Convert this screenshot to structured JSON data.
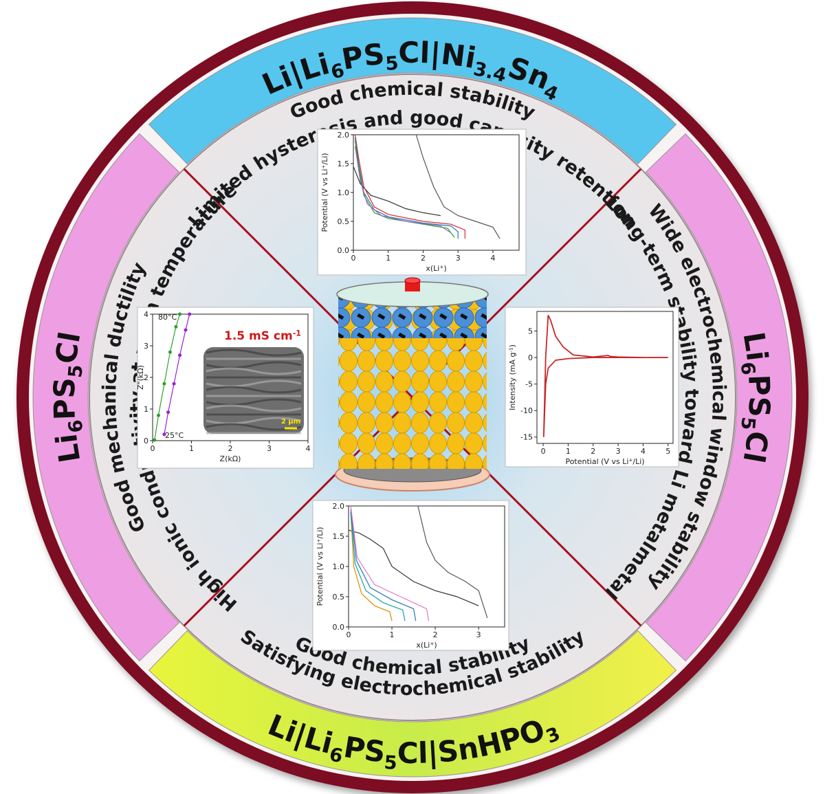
{
  "bands": {
    "top": {
      "parts": [
        "Li|Li",
        "6",
        "PS",
        "5",
        "Cl|Ni",
        "3.4",
        "Sn",
        "4"
      ],
      "script": "sub"
    },
    "right": {
      "parts": [
        "Li",
        "6",
        "PS",
        "5",
        "Cl"
      ],
      "script": "sub"
    },
    "bottom": {
      "parts": [
        "Li|Li",
        "6",
        "PS",
        "5",
        "Cl|SnHPO",
        "3"
      ],
      "script": "sub"
    },
    "left": {
      "parts": [
        "Li",
        "6",
        "PS",
        "5",
        "Cl"
      ],
      "script": "sub"
    }
  },
  "quadrants": {
    "top": [
      "Good chemical stability",
      "Limited hysteresis and good capacity retention"
    ],
    "right": [
      "Wide electrochemical window stability",
      "Long-term stability toward Li metalmetal"
    ],
    "bottom": [
      "Good chemical stability",
      "Satisfying electrochemical stability"
    ],
    "left": [
      "Good mechanical ductility",
      "High ionic conductivity at room temperature"
    ]
  },
  "panels": [
    {
      "type": "line",
      "ylabel": {
        "parts": [
          "Potential (V vs Li",
          "+",
          "/Li)"
        ],
        "script": "sup"
      },
      "xlabel": {
        "parts": [
          "x(Li",
          "+",
          ")"
        ],
        "script": "sup"
      },
      "xlim": [
        0,
        4.75
      ],
      "ylim": [
        0,
        2
      ],
      "xticks": [
        0,
        1,
        2,
        3,
        4
      ],
      "yticks": [
        {
          "value": 0,
          "label": "0.0"
        },
        {
          "value": 0.5,
          "label": "0.5"
        },
        {
          "value": 1,
          "label": "1.0"
        },
        {
          "value": 1.5,
          "label": "1.5"
        },
        {
          "value": 2,
          "label": "2.0"
        }
      ],
      "series": [
        {
          "color": "#555555",
          "x": [
            1.8,
            2.0,
            2.3,
            2.6,
            3.0,
            3.5,
            4.0,
            4.2
          ],
          "y": [
            2.0,
            1.6,
            1.1,
            0.75,
            0.6,
            0.5,
            0.4,
            0.2
          ]
        },
        {
          "color": "#333333",
          "x": [
            0,
            0.2,
            0.5,
            1.0,
            1.5,
            2.0,
            2.5
          ],
          "y": [
            1.45,
            1.15,
            0.95,
            0.85,
            0.72,
            0.65,
            0.6
          ]
        },
        {
          "color": "#d62728",
          "x": [
            0.05,
            0.15,
            0.3,
            0.6,
            1.0,
            2.0,
            2.8,
            3.2,
            3.2
          ],
          "y": [
            2.0,
            1.6,
            1.1,
            0.75,
            0.62,
            0.5,
            0.45,
            0.35,
            0.2
          ]
        },
        {
          "color": "#1f77b4",
          "x": [
            0.05,
            0.15,
            0.3,
            0.6,
            1.0,
            2.0,
            2.8,
            3.0,
            3.0
          ],
          "y": [
            1.95,
            1.5,
            1.0,
            0.7,
            0.58,
            0.47,
            0.42,
            0.32,
            0.2
          ]
        },
        {
          "color": "#2ca02c",
          "x": [
            0.05,
            0.15,
            0.3,
            0.6,
            1.0,
            2.0,
            2.7,
            2.9
          ],
          "y": [
            1.9,
            1.45,
            0.95,
            0.65,
            0.55,
            0.45,
            0.38,
            0.22
          ]
        },
        {
          "color": "#9467bd",
          "x": [
            0.05,
            0.2,
            0.4,
            0.8,
            1.5,
            2.5,
            2.8
          ],
          "y": [
            1.8,
            1.2,
            0.8,
            0.6,
            0.5,
            0.42,
            0.3
          ]
        }
      ]
    },
    {
      "type": "line",
      "ylabel": {
        "parts": [
          "Intensity (mA g",
          "-1",
          ")"
        ],
        "script": "sup"
      },
      "xlabel": {
        "parts": [
          "Potential (V vs Li",
          "+",
          "/Li)"
        ],
        "script": "sup"
      },
      "xlim": [
        -0.25,
        5.2
      ],
      "ylim": [
        -16.2,
        8.7
      ],
      "xticks": [
        0,
        1,
        2,
        3,
        4,
        5
      ],
      "yticks": [
        -15,
        -10,
        -5,
        0,
        5
      ],
      "series": [
        {
          "color": "#c62828",
          "x": [
            0.02,
            0.1,
            0.2,
            0.3,
            0.5,
            0.8,
            1.2,
            2.0,
            2.6,
            2.7,
            3.0,
            4.0,
            5.0,
            4.0,
            3.0,
            2.0,
            1.0,
            0.5,
            0.2,
            0.1,
            0.02
          ],
          "y": [
            -15,
            0,
            8,
            7,
            4,
            2,
            0.5,
            0.1,
            0.4,
            0.2,
            0.1,
            0,
            0,
            0,
            0,
            0,
            -0.2,
            -0.5,
            -2,
            -5,
            -15
          ]
        }
      ]
    },
    {
      "type": "line",
      "ylabel": {
        "parts": [
          "Potential (V vs Li",
          "+",
          "/Li)"
        ],
        "script": "sup"
      },
      "xlabel": {
        "parts": [
          "x(Li",
          "+",
          ")"
        ],
        "script": "sup"
      },
      "xlim": [
        0,
        3.6
      ],
      "ylim": [
        0,
        2
      ],
      "xticks": [
        0,
        1,
        2,
        3
      ],
      "yticks": [
        {
          "value": 0,
          "label": "0.0"
        },
        {
          "value": 0.5,
          "label": "0.5"
        },
        {
          "value": 1,
          "label": "1.0"
        },
        {
          "value": 1.5,
          "label": "1.5"
        },
        {
          "value": 2,
          "label": "2.0"
        }
      ],
      "series": [
        {
          "color": "#555555",
          "x": [
            1.6,
            1.8,
            2.0,
            2.3,
            2.7,
            3.0,
            3.2
          ],
          "y": [
            2.0,
            1.4,
            1.1,
            0.9,
            0.75,
            0.6,
            0.15
          ]
        },
        {
          "color": "#333333",
          "x": [
            0.0,
            0.25,
            0.5,
            0.8,
            1.0,
            1.5,
            2.0,
            2.5,
            3.0
          ],
          "y": [
            1.6,
            1.55,
            1.45,
            1.3,
            1.0,
            0.75,
            0.6,
            0.5,
            0.35
          ]
        },
        {
          "color": "#e08a00",
          "x": [
            0.05,
            0.12,
            0.3,
            0.6,
            0.95,
            1.0
          ],
          "y": [
            1.9,
            1.0,
            0.55,
            0.35,
            0.25,
            0.1
          ]
        },
        {
          "color": "#17a2a2",
          "x": [
            0.05,
            0.15,
            0.4,
            0.8,
            1.25,
            1.3
          ],
          "y": [
            1.9,
            1.05,
            0.6,
            0.4,
            0.28,
            0.1
          ]
        },
        {
          "color": "#1f77b4",
          "x": [
            0.05,
            0.18,
            0.5,
            1.0,
            1.5,
            1.55
          ],
          "y": [
            1.95,
            1.1,
            0.65,
            0.45,
            0.3,
            0.1
          ]
        },
        {
          "color": "#e377c2",
          "x": [
            0.05,
            0.2,
            0.6,
            1.2,
            1.8,
            1.85
          ],
          "y": [
            2.0,
            1.15,
            0.7,
            0.5,
            0.3,
            0.1
          ]
        }
      ]
    },
    {
      "type": "scatter",
      "ylabel": "Z\"(kΩ)",
      "xlabel": "Z(kΩ)",
      "xlim": [
        0,
        4
      ],
      "ylim": [
        0,
        4
      ],
      "xticks": [
        0,
        1,
        2,
        3,
        4
      ],
      "yticks": [
        0,
        1,
        2,
        3,
        4
      ],
      "labels": [
        "80°C",
        "25°C"
      ],
      "conductivity": {
        "parts": [
          "1.5 mS cm",
          "-1"
        ],
        "script": "sup"
      },
      "scale_bar": "2 µm",
      "series": [
        {
          "color": "#2ca02c",
          "x": [
            0.05,
            0.15,
            0.3,
            0.45,
            0.6,
            0.7
          ],
          "y": [
            0.02,
            0.8,
            1.8,
            2.8,
            3.6,
            4.0
          ]
        },
        {
          "color": "#9b1fd6",
          "x": [
            0.3,
            0.4,
            0.55,
            0.7,
            0.85,
            0.95
          ],
          "y": [
            0.2,
            0.9,
            1.8,
            2.7,
            3.5,
            4.0
          ]
        }
      ]
    }
  ]
}
